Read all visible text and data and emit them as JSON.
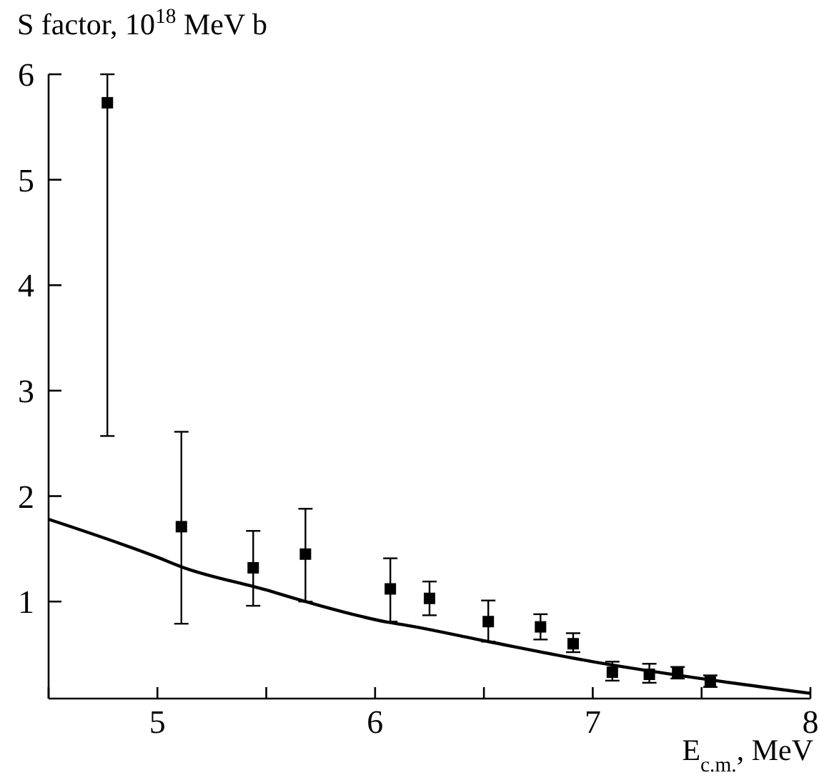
{
  "chart_data": {
    "type": "scatter",
    "xlabel": "E$_{c.m.}$, MeV",
    "ylabel": "S factor, 10$^{18}$ MeV b",
    "xlim": [
      4.5,
      8
    ],
    "ylim": [
      0.08,
      6
    ],
    "xticks": [
      {
        "value": 4.5,
        "label": null
      },
      5,
      {
        "value": 5.5,
        "label": null
      },
      6,
      {
        "value": 6.5,
        "label": null
      },
      7,
      {
        "value": 7.5,
        "label": null
      },
      8
    ],
    "yticks": [
      1,
      2,
      3,
      4,
      5,
      6
    ],
    "grid": false,
    "series": [
      {
        "color": "#000000",
        "marker": "square",
        "x": [
          4.77,
          5.11,
          5.44,
          5.68,
          6.07,
          6.25,
          6.52,
          6.76,
          6.91,
          7.09,
          7.26,
          7.39,
          7.54
        ],
        "values": [
          5.73,
          1.71,
          1.32,
          1.45,
          1.12,
          1.03,
          0.81,
          0.76,
          0.6,
          0.33,
          0.31,
          0.32,
          0.24
        ],
        "errors": [
          [
            2.57,
            6
          ],
          [
            0.79,
            2.61
          ],
          [
            0.96,
            1.67
          ],
          [
            1.0,
            1.88
          ],
          [
            0.81,
            1.41
          ],
          [
            0.87,
            1.19
          ],
          [
            0.62,
            1.01
          ],
          [
            0.64,
            0.88
          ],
          [
            0.52,
            0.7
          ],
          [
            0.25,
            0.43
          ],
          [
            0.23,
            0.41
          ],
          [
            0.27,
            0.38
          ],
          [
            0.19,
            0.3
          ]
        ]
      },
      {
        "type": "line",
        "color": "#000000",
        "line_style": "solid",
        "marker": "none",
        "x": [
          4.5,
          5.0,
          5.11,
          5.5,
          5.68,
          6.07,
          6.13,
          6.52,
          7.0,
          7.53,
          8.0
        ],
        "values": [
          1.78,
          1.42,
          1.33,
          1.11,
          1.0,
          0.8,
          0.78,
          0.62,
          0.43,
          0.26,
          0.13
        ]
      }
    ]
  }
}
